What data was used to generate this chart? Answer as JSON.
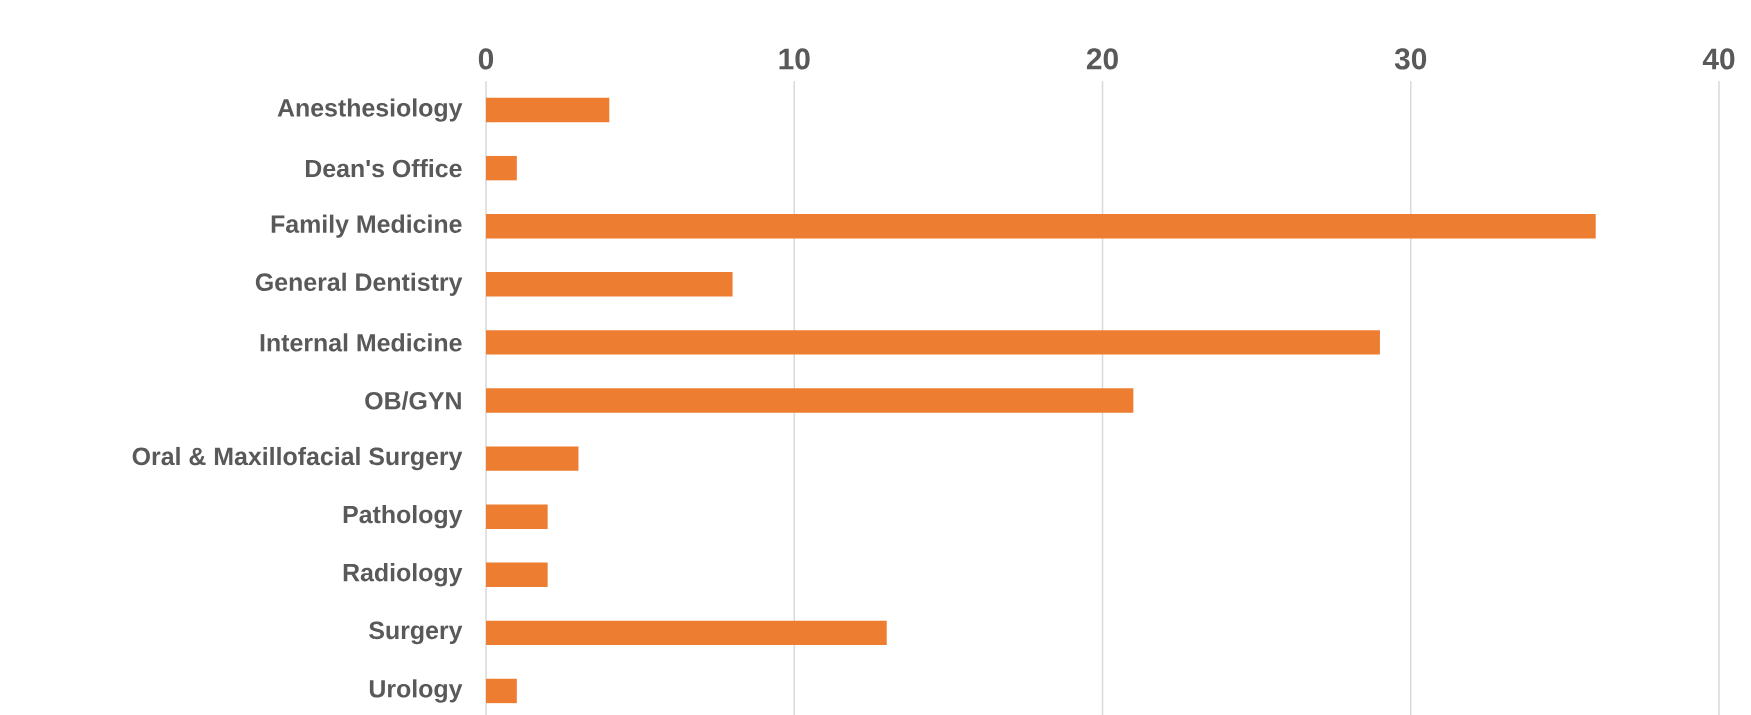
{
  "chart_data": {
    "type": "bar",
    "orientation": "horizontal",
    "categories": [
      "Anesthesiology",
      "Dean's Office",
      "Family Medicine",
      "General Dentistry",
      "Internal Medicine",
      "OB/GYN",
      "Oral & Maxillofacial Surgery",
      "Pathology",
      "Radiology",
      "Surgery",
      "Urology"
    ],
    "values": [
      4,
      1,
      36,
      8,
      29,
      21,
      3,
      2,
      2,
      13,
      1
    ],
    "color": "#ed7d31",
    "xlim": [
      0,
      40
    ],
    "xticks": [
      0,
      10,
      20,
      30,
      40
    ],
    "grid": "x"
  }
}
